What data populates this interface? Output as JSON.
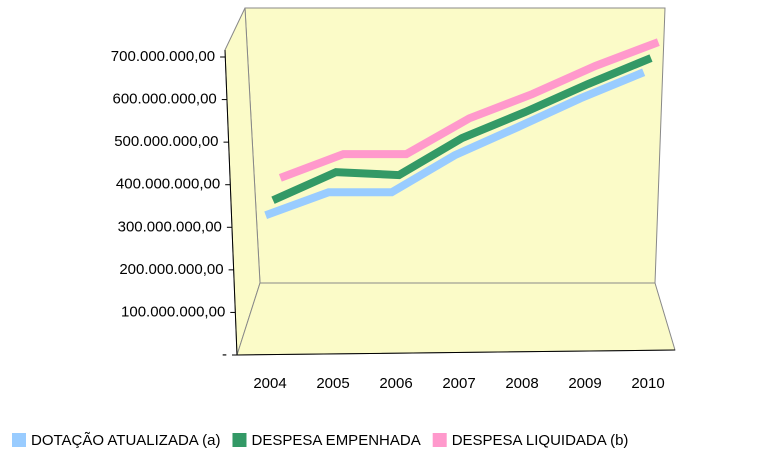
{
  "chart_data": {
    "type": "line3d",
    "categories": [
      "2004",
      "2005",
      "2006",
      "2007",
      "2008",
      "2009",
      "2010"
    ],
    "series": [
      {
        "name": "DOTAÇÃO ATUALIZADA (a)",
        "color": "#99ccff",
        "values": [
          300000000,
          354000000,
          354000000,
          441000000,
          507000000,
          575000000,
          636000000
        ]
      },
      {
        "name": "DESPESA EMPENHADA",
        "color": "#339966",
        "values": [
          279000000,
          345000000,
          338000000,
          425000000,
          486000000,
          552000000,
          613000000
        ]
      },
      {
        "name": "DESPESA LIQUIDADA (b)",
        "color": "#ff99cc",
        "values": [
          275000000,
          331000000,
          331000000,
          415000000,
          472000000,
          538000000,
          594000000
        ]
      }
    ],
    "ylim": [
      0,
      700000000
    ],
    "yticks": [
      {
        "value": 0,
        "label": "-"
      },
      {
        "value": 100000000,
        "label": "100.000.000,00"
      },
      {
        "value": 200000000,
        "label": "200.000.000,00"
      },
      {
        "value": 300000000,
        "label": "300.000.000,00"
      },
      {
        "value": 400000000,
        "label": "400.000.000,00"
      },
      {
        "value": 500000000,
        "label": "500.000.000,00"
      },
      {
        "value": 600000000,
        "label": "600.000.000,00"
      },
      {
        "value": 700000000,
        "label": "700.000.000,00"
      }
    ],
    "legend": "bottom"
  }
}
